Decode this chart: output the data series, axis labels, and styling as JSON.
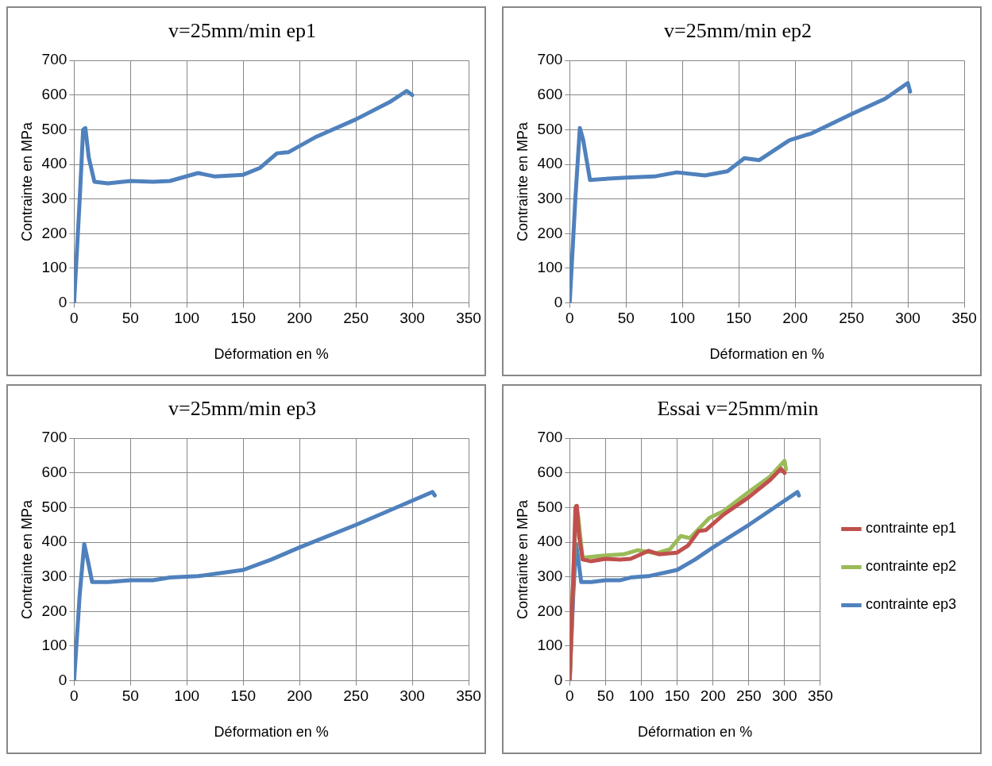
{
  "chart_data": [
    {
      "type": "line",
      "title": "v=25mm/min ep1",
      "xlabel": "Déformation en %",
      "ylabel": "Contrainte en MPa",
      "xlim": [
        0,
        350
      ],
      "xticks": [
        0,
        50,
        100,
        150,
        200,
        250,
        300,
        350
      ],
      "ylim": [
        0,
        700
      ],
      "yticks": [
        0,
        100,
        200,
        300,
        400,
        500,
        600,
        700
      ],
      "grid": true,
      "legend": false,
      "marker": "none",
      "series": [
        {
          "color": "#4f81bd",
          "x": [
            0,
            5,
            8,
            10,
            13,
            18,
            30,
            50,
            70,
            85,
            110,
            125,
            150,
            165,
            180,
            190,
            215,
            250,
            280,
            295,
            300
          ],
          "values": [
            0,
            300,
            500,
            505,
            420,
            350,
            345,
            352,
            350,
            352,
            375,
            365,
            370,
            390,
            432,
            435,
            480,
            530,
            580,
            612,
            600
          ]
        }
      ]
    },
    {
      "type": "line",
      "title": "v=25mm/min ep2",
      "xlabel": "Déformation en %",
      "ylabel": "Contrainte en MPa",
      "xlim": [
        0,
        350
      ],
      "xticks": [
        0,
        50,
        100,
        150,
        200,
        250,
        300,
        350
      ],
      "ylim": [
        0,
        700
      ],
      "yticks": [
        0,
        100,
        200,
        300,
        400,
        500,
        600,
        700
      ],
      "grid": true,
      "legend": false,
      "marker": "none",
      "series": [
        {
          "color": "#4f81bd",
          "x": [
            0,
            5,
            9,
            12,
            18,
            30,
            50,
            75,
            95,
            120,
            140,
            155,
            168,
            195,
            215,
            250,
            280,
            300,
            302
          ],
          "values": [
            0,
            300,
            505,
            470,
            355,
            358,
            362,
            365,
            377,
            368,
            380,
            418,
            412,
            470,
            490,
            545,
            590,
            635,
            610
          ]
        }
      ]
    },
    {
      "type": "line",
      "title": "v=25mm/min ep3",
      "xlabel": "Déformation en %",
      "ylabel": "Contrainte en MPa",
      "xlim": [
        0,
        350
      ],
      "xticks": [
        0,
        50,
        100,
        150,
        200,
        250,
        300,
        350
      ],
      "ylim": [
        0,
        700
      ],
      "yticks": [
        0,
        100,
        200,
        300,
        400,
        500,
        600,
        700
      ],
      "grid": true,
      "legend": false,
      "marker": "none",
      "series": [
        {
          "color": "#4f81bd",
          "x": [
            0,
            5,
            9,
            12,
            16,
            30,
            50,
            70,
            85,
            110,
            150,
            175,
            200,
            250,
            300,
            318,
            320
          ],
          "values": [
            0,
            250,
            395,
            350,
            285,
            285,
            290,
            290,
            298,
            302,
            320,
            350,
            385,
            450,
            520,
            545,
            535
          ]
        }
      ]
    },
    {
      "type": "line",
      "title": "Essai v=25mm/min",
      "xlabel": "Déformation en %",
      "ylabel": "Contrainte en MPa",
      "xlim": [
        0,
        350
      ],
      "xticks": [
        0,
        50,
        100,
        150,
        200,
        250,
        300,
        350
      ],
      "ylim": [
        0,
        700
      ],
      "yticks": [
        0,
        100,
        200,
        300,
        400,
        500,
        600,
        700
      ],
      "grid": true,
      "legend": "right",
      "marker": "none",
      "series": [
        {
          "name": "contrainte ep1",
          "color": "#c0504d",
          "x": [
            0,
            5,
            8,
            10,
            13,
            18,
            30,
            50,
            70,
            85,
            110,
            125,
            150,
            165,
            180,
            190,
            215,
            250,
            280,
            295,
            300
          ],
          "values": [
            0,
            300,
            500,
            505,
            420,
            350,
            345,
            352,
            350,
            352,
            375,
            365,
            370,
            390,
            432,
            435,
            480,
            530,
            580,
            612,
            600
          ]
        },
        {
          "name": "contrainte ep2",
          "color": "#9bbb59",
          "x": [
            0,
            5,
            9,
            12,
            18,
            30,
            50,
            75,
            95,
            120,
            140,
            155,
            168,
            195,
            215,
            250,
            280,
            300,
            302
          ],
          "values": [
            0,
            300,
            505,
            470,
            355,
            358,
            362,
            365,
            377,
            368,
            380,
            418,
            412,
            470,
            490,
            545,
            590,
            635,
            610
          ]
        },
        {
          "name": "contrainte ep3",
          "color": "#4f81bd",
          "x": [
            0,
            5,
            9,
            12,
            16,
            30,
            50,
            70,
            85,
            110,
            150,
            175,
            200,
            250,
            300,
            318,
            320
          ],
          "values": [
            0,
            250,
            395,
            350,
            285,
            285,
            290,
            290,
            298,
            302,
            320,
            350,
            385,
            450,
            520,
            545,
            535
          ]
        }
      ]
    }
  ]
}
